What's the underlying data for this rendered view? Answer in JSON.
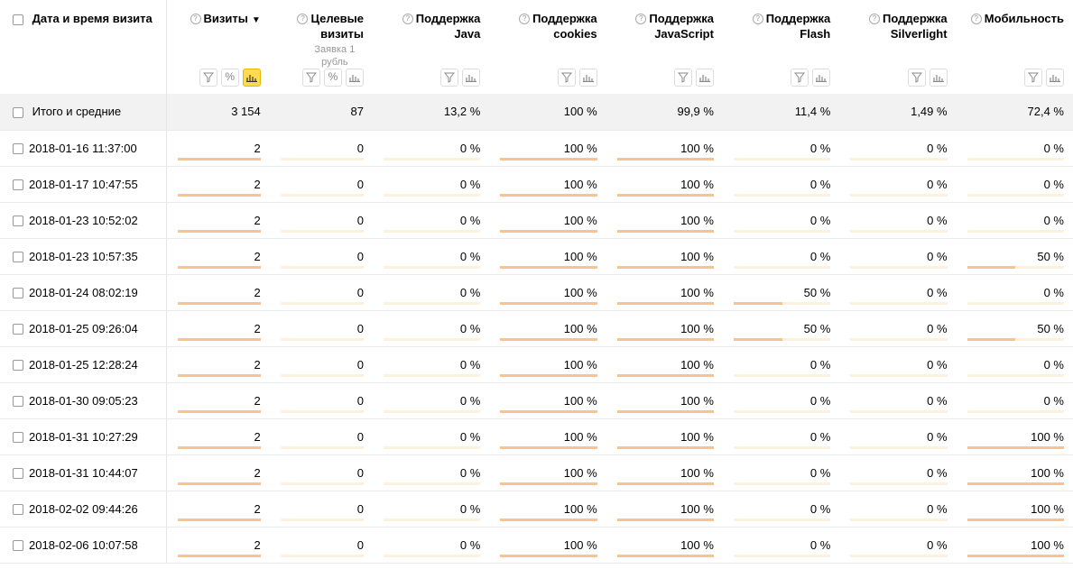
{
  "columns": [
    {
      "title": "Визиты",
      "has_help": true,
      "sort": "▼",
      "buttons": [
        "filter",
        "percent",
        "bars-active"
      ]
    },
    {
      "title": "Целевые визиты",
      "has_help": true,
      "goal": "Заявка 1 рубль",
      "buttons": [
        "filter",
        "percent",
        "bars"
      ]
    },
    {
      "title": "Поддержка Java",
      "has_help": true,
      "buttons": [
        "filter",
        "bars"
      ]
    },
    {
      "title": "Поддержка cookies",
      "has_help": true,
      "buttons": [
        "filter",
        "bars"
      ]
    },
    {
      "title": "Поддержка JavaScript",
      "has_help": true,
      "buttons": [
        "filter",
        "bars"
      ]
    },
    {
      "title": "Поддержка Flash",
      "has_help": true,
      "buttons": [
        "filter",
        "bars"
      ]
    },
    {
      "title": "Поддержка Silverlight",
      "has_help": true,
      "buttons": [
        "filter",
        "bars"
      ]
    },
    {
      "title": "Мобильность",
      "has_help": true,
      "buttons": [
        "filter",
        "bars"
      ]
    }
  ],
  "dimension_header": "Дата и время визита",
  "totals": {
    "label": "Итого и средние",
    "values": [
      "3 154",
      "87",
      "13,2 %",
      "100 %",
      "99,9 %",
      "11,4 %",
      "1,49 %",
      "72,4 %"
    ]
  },
  "rows": [
    {
      "label": "2018-01-16 11:37:00",
      "values": [
        "2",
        "0",
        "0 %",
        "100 %",
        "100 %",
        "0 %",
        "0 %",
        "0 %"
      ],
      "fills": [
        1,
        0,
        0,
        1,
        1,
        0,
        0,
        0
      ]
    },
    {
      "label": "2018-01-17 10:47:55",
      "values": [
        "2",
        "0",
        "0 %",
        "100 %",
        "100 %",
        "0 %",
        "0 %",
        "0 %"
      ],
      "fills": [
        1,
        0,
        0,
        1,
        1,
        0,
        0,
        0
      ]
    },
    {
      "label": "2018-01-23 10:52:02",
      "values": [
        "2",
        "0",
        "0 %",
        "100 %",
        "100 %",
        "0 %",
        "0 %",
        "0 %"
      ],
      "fills": [
        1,
        0,
        0,
        1,
        1,
        0,
        0,
        0
      ]
    },
    {
      "label": "2018-01-23 10:57:35",
      "values": [
        "2",
        "0",
        "0 %",
        "100 %",
        "100 %",
        "0 %",
        "0 %",
        "50 %"
      ],
      "fills": [
        1,
        0,
        0,
        1,
        1,
        0,
        0,
        0.5
      ]
    },
    {
      "label": "2018-01-24 08:02:19",
      "values": [
        "2",
        "0",
        "0 %",
        "100 %",
        "100 %",
        "50 %",
        "0 %",
        "0 %"
      ],
      "fills": [
        1,
        0,
        0,
        1,
        1,
        0.5,
        0,
        0
      ]
    },
    {
      "label": "2018-01-25 09:26:04",
      "values": [
        "2",
        "0",
        "0 %",
        "100 %",
        "100 %",
        "50 %",
        "0 %",
        "50 %"
      ],
      "fills": [
        1,
        0,
        0,
        1,
        1,
        0.5,
        0,
        0.5
      ]
    },
    {
      "label": "2018-01-25 12:28:24",
      "values": [
        "2",
        "0",
        "0 %",
        "100 %",
        "100 %",
        "0 %",
        "0 %",
        "0 %"
      ],
      "fills": [
        1,
        0,
        0,
        1,
        1,
        0,
        0,
        0
      ]
    },
    {
      "label": "2018-01-30 09:05:23",
      "values": [
        "2",
        "0",
        "0 %",
        "100 %",
        "100 %",
        "0 %",
        "0 %",
        "0 %"
      ],
      "fills": [
        1,
        0,
        0,
        1,
        1,
        0,
        0,
        0
      ]
    },
    {
      "label": "2018-01-31 10:27:29",
      "values": [
        "2",
        "0",
        "0 %",
        "100 %",
        "100 %",
        "0 %",
        "0 %",
        "100 %"
      ],
      "fills": [
        1,
        0,
        0,
        1,
        1,
        0,
        0,
        1
      ]
    },
    {
      "label": "2018-01-31 10:44:07",
      "values": [
        "2",
        "0",
        "0 %",
        "100 %",
        "100 %",
        "0 %",
        "0 %",
        "100 %"
      ],
      "fills": [
        1,
        0,
        0,
        1,
        1,
        0,
        0,
        1
      ]
    },
    {
      "label": "2018-02-02 09:44:26",
      "values": [
        "2",
        "0",
        "0 %",
        "100 %",
        "100 %",
        "0 %",
        "0 %",
        "100 %"
      ],
      "fills": [
        1,
        0,
        0,
        1,
        1,
        0,
        0,
        1
      ]
    },
    {
      "label": "2018-02-06 10:07:58",
      "values": [
        "2",
        "0",
        "0 %",
        "100 %",
        "100 %",
        "0 %",
        "0 %",
        "100 %"
      ],
      "fills": [
        1,
        0,
        0,
        1,
        1,
        0,
        0,
        1
      ]
    }
  ]
}
